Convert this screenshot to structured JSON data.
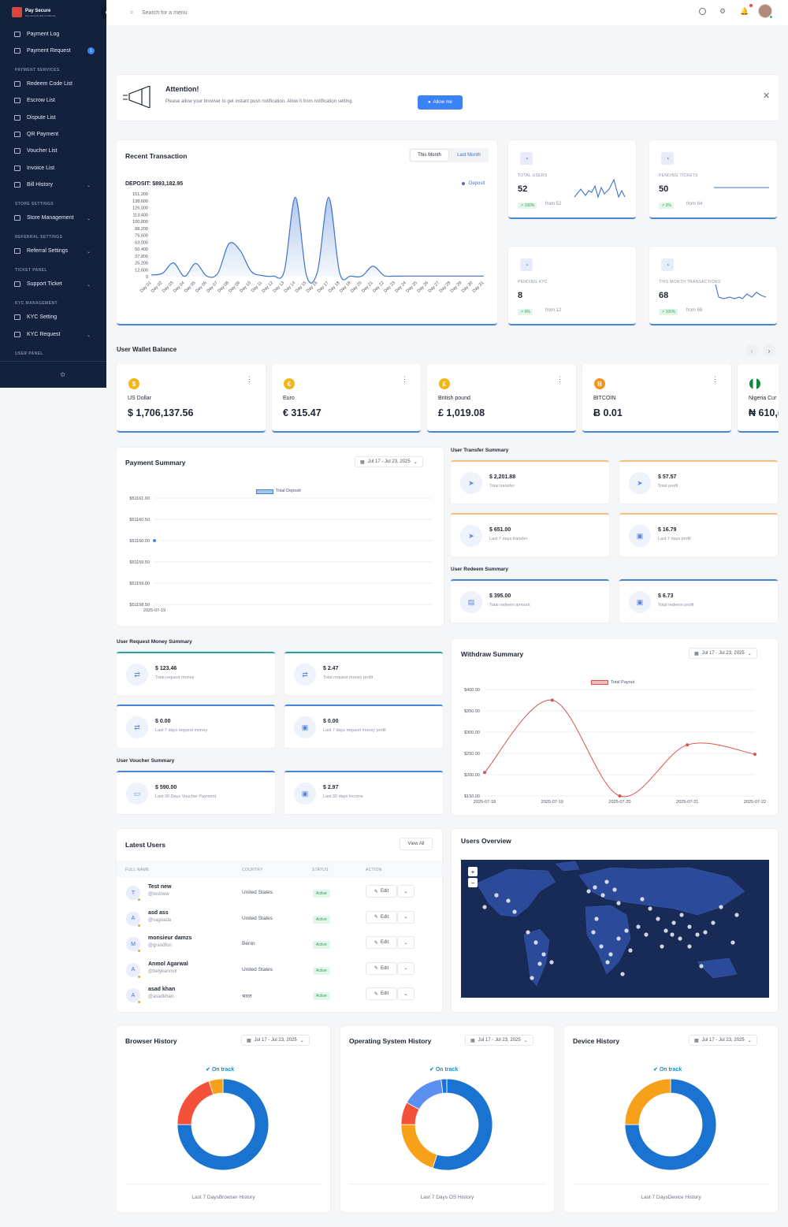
{
  "brand": {
    "name": "Pay Secure",
    "tagline": "Pay securely with confidence"
  },
  "sidebar": {
    "items": [
      {
        "label": "Payment Log"
      },
      {
        "label": "Payment Request",
        "badge": "1"
      },
      {
        "section": "PAYMENT SERVICES"
      },
      {
        "label": "Redeem Code List"
      },
      {
        "label": "Escrow List"
      },
      {
        "label": "Dispute List"
      },
      {
        "label": "QR Payment"
      },
      {
        "label": "Voucher List"
      },
      {
        "label": "Invoice List"
      },
      {
        "label": "Bill History"
      },
      {
        "section": "STORE SETTINGS"
      },
      {
        "label": "Store Management"
      },
      {
        "section": "REFERRAL SETTINGS"
      },
      {
        "label": "Referral Settings"
      },
      {
        "section": "TICKET PANEL"
      },
      {
        "label": "Support Ticket"
      },
      {
        "section": "KYC MANAGEMENT"
      },
      {
        "label": "KYC Setting"
      },
      {
        "label": "KYC Request"
      },
      {
        "section": "USER PANEL"
      }
    ]
  },
  "topbar": {
    "search_placeholder": "Search for a menu"
  },
  "attention": {
    "title": "Attention!",
    "message": "Please allow your browser to get instant push notification. Allow it from notification setting.",
    "button": "Allow me"
  },
  "recent_transaction": {
    "title": "Recent Transaction",
    "tabs": [
      "This Month",
      "Last Month"
    ],
    "deposit_label": "DEPOSIT: $893,182.95",
    "legend": "Deposit"
  },
  "chart_data": [
    {
      "type": "area",
      "title": "Recent Transaction",
      "categories": [
        "Day 01",
        "Day 02",
        "Day 03",
        "Day 04",
        "Day 05",
        "Day 06",
        "Day 07",
        "Day 08",
        "Day 09",
        "Day 10",
        "Day 11",
        "Day 12",
        "Day 13",
        "Day 14",
        "Day 15",
        "Day 16",
        "Day 17",
        "Day 18",
        "Day 19",
        "Day 20",
        "Day 21",
        "Day 22",
        "Day 23",
        "Day 24",
        "Day 25",
        "Day 26",
        "Day 27",
        "Day 28",
        "Day 29",
        "Day 30",
        "Day 31"
      ],
      "yticks": [
        "151,200",
        "138,600",
        "126,000",
        "113,400",
        "100,800",
        "88,200",
        "75,600",
        "63,000",
        "50,400",
        "37,800",
        "25,200",
        "12,600",
        "0"
      ],
      "series": [
        {
          "name": "Deposit",
          "values": [
            3000,
            6000,
            25000,
            500,
            24000,
            1000,
            6000,
            60000,
            48000,
            10000,
            2000,
            1000,
            10000,
            145000,
            2000,
            10000,
            145000,
            6000,
            1000,
            1000,
            19000,
            2000,
            1000,
            1000,
            1000,
            1000,
            1000,
            1000,
            1000,
            1000,
            1000
          ]
        }
      ],
      "ylim": [
        0,
        151200
      ],
      "color": "#3e73c9"
    },
    {
      "type": "line",
      "title": "Payment Summary",
      "categories": [
        "2025-07-19"
      ],
      "yticks": [
        "$51161.00",
        "$51160.50",
        "$51160.00",
        "$51159.50",
        "$51159.00",
        "$51158.50"
      ],
      "series": [
        {
          "name": "Total Deposit",
          "values": [
            51160
          ]
        }
      ],
      "ylim": [
        51158.5,
        51161
      ]
    },
    {
      "type": "line",
      "title": "Withdraw Summary",
      "categories": [
        "2025-07-18",
        "2025-07-19",
        "2025-07-20",
        "2025-07-21",
        "2025-07-22"
      ],
      "yticks": [
        "$400.00",
        "$350.00",
        "$300.00",
        "$250.00",
        "$200.00",
        "$150.00"
      ],
      "series": [
        {
          "name": "Total Payout",
          "values": [
            205,
            375,
            150,
            270,
            248
          ]
        }
      ],
      "ylim": [
        150,
        400
      ],
      "color": "#d9534f"
    },
    {
      "type": "pie",
      "title": "Browser History",
      "series": [
        {
          "values": [
            75,
            20,
            5
          ]
        }
      ],
      "colors": [
        "#1a73d1",
        "#f4513b",
        "#f7a11a"
      ]
    },
    {
      "type": "pie",
      "title": "Operating System History",
      "series": [
        {
          "values": [
            55,
            20,
            8,
            15,
            2
          ]
        }
      ],
      "colors": [
        "#1a73d1",
        "#f7a11a",
        "#f4513b",
        "#5b8ff0",
        "#1a73d1"
      ]
    },
    {
      "type": "pie",
      "title": "Device History",
      "series": [
        {
          "values": [
            75,
            25
          ]
        }
      ],
      "colors": [
        "#1a73d1",
        "#f7a11a"
      ]
    }
  ],
  "stats": [
    {
      "label": "TOTAL USERS",
      "value": "52",
      "pill": "100%",
      "from": "from 52"
    },
    {
      "label": "PENDING TICKETS",
      "value": "50",
      "pill": "0%",
      "from": "from 64"
    },
    {
      "label": "PENDING KYC",
      "value": "8",
      "pill": "0%",
      "from": "from 12"
    },
    {
      "label": "THIS MONTH TRANSACTIONS",
      "value": "68",
      "pill": "100%",
      "from": "from 68"
    }
  ],
  "wallet": {
    "title": "User Wallet Balance",
    "items": [
      {
        "name": "US Dollar",
        "value": "$ 1,706,137.56",
        "symbol": "$"
      },
      {
        "name": "Euro",
        "value": "€ 315.47",
        "symbol": "€"
      },
      {
        "name": "British pound",
        "value": "£ 1,019.08",
        "symbol": "£"
      },
      {
        "name": "BITCOIN",
        "value": "Ƀ 0.01",
        "symbol": "B"
      },
      {
        "name": "Nigeria Cur",
        "value": "₦ 610,(",
        "symbol": ""
      }
    ]
  },
  "payment_summary": {
    "title": "Payment Summary",
    "date": "Jul 17 - Jul 23, 2025",
    "legend": "Total Deposit",
    "xlabel": "2025-07-19"
  },
  "transfer_summary": {
    "title": "User Transfer Summary",
    "items": [
      {
        "value": "$ 2,201.88",
        "label": "Total transfer"
      },
      {
        "value": "$ 57.57",
        "label": "Total profit"
      },
      {
        "value": "$ 651.00",
        "label": "Last 7 days transfer"
      },
      {
        "value": "$ 16.79",
        "label": "Last 7 days profit"
      }
    ]
  },
  "redeem_summary": {
    "title": "User Redeem Summary",
    "items": [
      {
        "value": "$ 395.00",
        "label": "Total redeem amount"
      },
      {
        "value": "$ 6.73",
        "label": "Total redeem profit"
      }
    ]
  },
  "request_summary": {
    "title": "User Request Money Summary",
    "items": [
      {
        "value": "$ 123.46",
        "label": "Total request money"
      },
      {
        "value": "$ 2.47",
        "label": "Total request money profit"
      },
      {
        "value": "$ 0.00",
        "label": "Last 7 days request money"
      },
      {
        "value": "$ 0.00",
        "label": "Last 7 days request money profit"
      }
    ]
  },
  "voucher_summary": {
    "title": "User Voucher Summary",
    "items": [
      {
        "value": "$ 590.00",
        "label": "Last 30 Days Voucher Payment"
      },
      {
        "value": "$ 2.97",
        "label": "Last 30 days Income"
      }
    ]
  },
  "withdraw_summary": {
    "title": "Withdraw Summary",
    "date": "Jul 17 - Jul 23, 2025",
    "legend": "Total Payout"
  },
  "latest_users": {
    "title": "Latest Users",
    "view_all": "View All",
    "columns": [
      "FULL NAME",
      "COUNTRY",
      "STATUS",
      "ACTION"
    ],
    "edit_label": "Edit",
    "rows": [
      {
        "initial": "T",
        "name": "Test new",
        "handle": "@testnew",
        "country": "United States",
        "status": "Active"
      },
      {
        "initial": "A",
        "name": "asd ass",
        "handle": "@vaguada",
        "country": "United States",
        "status": "Active"
      },
      {
        "initial": "M",
        "name": "monsieur damzs",
        "handle": "@grandfon",
        "country": "Bénin",
        "status": "Active"
      },
      {
        "initial": "A",
        "name": "Anmol Agarwal",
        "handle": "@belykanmol",
        "country": "United States",
        "status": "Active"
      },
      {
        "initial": "A",
        "name": "asad khan",
        "handle": "@asadkhan",
        "country": "भारत",
        "status": "Active"
      }
    ]
  },
  "users_overview": {
    "title": "Users Overview",
    "zoom_in": "+",
    "zoom_out": "−"
  },
  "history": {
    "ontrack": "On track",
    "date": "Jul 17 - Jul 23, 2025",
    "cards": [
      {
        "title": "Browser History",
        "footer": "Last 7 DaysBrowser History"
      },
      {
        "title": "Operating System History",
        "footer": "Last 7 Days OS History"
      },
      {
        "title": "Device History",
        "footer": "Last 7 DaysDevice History"
      }
    ]
  }
}
